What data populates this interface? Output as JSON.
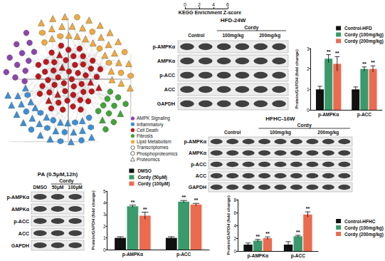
{
  "network": {
    "groups": [
      {
        "label": "AMPK Signaling",
        "color": "#8e44ad",
        "counts": [
          12,
          0,
          0
        ]
      },
      {
        "label": "Inflammatory",
        "color": "#3b8fd9",
        "counts": [
          6,
          6,
          22
        ]
      },
      {
        "label": "Cell Death",
        "color": "#c0161b",
        "counts": [
          44,
          0,
          6
        ]
      },
      {
        "label": "Fibrosis",
        "color": "#3fa535",
        "counts": [
          10,
          0,
          2
        ]
      },
      {
        "label": "Lipid Metabolism",
        "color": "#f2a93b",
        "counts": [
          6,
          4,
          26
        ]
      }
    ],
    "omics": [
      {
        "label": "Transcriptomes",
        "marker": "circle"
      },
      {
        "label": "Phosphoproteomics",
        "marker": "hexagon"
      },
      {
        "label": "Proteomics",
        "marker": "triangle"
      }
    ]
  },
  "blots": [
    {
      "title": "HFD-24W",
      "columns": [
        "Control",
        "100mg/kg",
        "200mg/kg"
      ],
      "bracket": {
        "label": "Cordy",
        "from": 1,
        "to": 2
      },
      "lanes_per_column": 2,
      "rows": [
        "p-AMPKα",
        "AMPKα",
        "p-ACC",
        "ACC",
        "GAPDH"
      ]
    },
    {
      "title": "HFHC-16W",
      "columns": [
        "Control",
        "100mg/kg",
        "200mg/kg"
      ],
      "bracket": {
        "label": "Cordy",
        "from": 1,
        "to": 2
      },
      "lanes_per_column": 3,
      "rows": [
        "p-AMPKα",
        "AMPKα",
        "p-ACC",
        "ACC",
        "GAPDH"
      ]
    },
    {
      "title": "PA (0.5μM,12h)",
      "columns": [
        "DMSO",
        "50μM",
        "100μM"
      ],
      "bracket": {
        "label": "Cordy",
        "from": 1,
        "to": 2
      },
      "lanes_per_column": 1,
      "rows": [
        "p-AMPKα",
        "AMPKα",
        "p-ACC",
        "ACC",
        "GAPDH"
      ]
    }
  ],
  "chart_data": [
    {
      "type": "bar",
      "orientation": "horizontal",
      "xlabel": "KEGG Enrichment Z-score",
      "xlim": [
        0,
        6
      ],
      "xticks": [
        0,
        2,
        4,
        6
      ],
      "categories": [],
      "values": []
    },
    {
      "type": "bar",
      "ylabel": "Protein/GAPDH (fold change)",
      "categories": [
        "p-AMPKα",
        "p-ACC"
      ],
      "series": [
        {
          "name": "Control-HFD",
          "color": "#111111",
          "values": [
            1.0,
            1.0
          ],
          "errors": [
            0.15,
            0.12
          ]
        },
        {
          "name": "Cordy (100mg/kg)",
          "color": "#3a9a6b",
          "values": [
            2.5,
            2.0
          ],
          "errors": [
            0.2,
            0.1
          ],
          "annotations": [
            "**",
            "**"
          ]
        },
        {
          "name": "Cordy (200mg/kg)",
          "color": "#ec6b4f",
          "values": [
            2.25,
            2.0
          ],
          "errors": [
            0.35,
            0.15
          ],
          "annotations": [
            "**",
            "**"
          ]
        }
      ],
      "ylim": [
        0,
        3
      ],
      "yticks": [
        0,
        1,
        2,
        3
      ],
      "grid": false,
      "legend": "top right"
    },
    {
      "type": "bar",
      "ylabel": "Protein/GAPDH (fold change)",
      "categories": [
        "p-AMPKα",
        "p-ACC"
      ],
      "series": [
        {
          "name": "Control-HFHC",
          "color": "#111111",
          "values": [
            1.0,
            1.0
          ],
          "errors": [
            0.25,
            0.45
          ]
        },
        {
          "name": "Cordy (100mg/kg)",
          "color": "#3a9a6b",
          "values": [
            1.6,
            2.3
          ],
          "errors": [
            0.2,
            0.15
          ],
          "annotations": [
            "**",
            "**"
          ]
        },
        {
          "name": "Cordy (200mg/kg)",
          "color": "#ec6b4f",
          "values": [
            2.0,
            5.7
          ],
          "errors": [
            0.2,
            0.4
          ],
          "annotations": [
            "**",
            "**"
          ]
        }
      ],
      "ylim": [
        0,
        8
      ],
      "yticks": [
        0,
        2,
        4,
        6,
        8
      ],
      "grid": false,
      "legend": "right"
    },
    {
      "type": "bar",
      "ylabel": "Protein/GAPDH (fold change)",
      "categories": [
        "p-AMPKα",
        "p-ACC"
      ],
      "series": [
        {
          "name": "DMSO",
          "color": "#111111",
          "values": [
            1.0,
            1.0
          ],
          "errors": [
            0.1,
            0.1
          ]
        },
        {
          "name": "Cordy (50μM)",
          "color": "#3a9a6b",
          "values": [
            3.7,
            4.1
          ],
          "errors": [
            0.1,
            0.1
          ],
          "annotations": [
            "**",
            "**"
          ]
        },
        {
          "name": "Cordy (100μM)",
          "color": "#ec6b4f",
          "values": [
            2.9,
            3.85
          ],
          "errors": [
            0.3,
            0.1
          ],
          "annotations": [
            "**",
            "**"
          ]
        }
      ],
      "ylim": [
        0,
        5
      ],
      "yticks": [
        0,
        1,
        2,
        3,
        4,
        5
      ],
      "grid": false,
      "legend": "top"
    }
  ]
}
